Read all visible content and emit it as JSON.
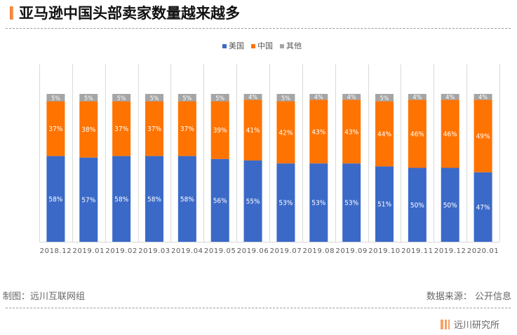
{
  "header": {
    "title": "亚马逊中国头部卖家数量越来越多"
  },
  "footer": {
    "credit": "制图：远川互联网组",
    "source": "数据来源： 公开信息",
    "brand": "远川研究所"
  },
  "chart_data": {
    "type": "bar",
    "stacked": true,
    "title": "亚马逊中国头部卖家数量越来越多",
    "xlabel": "",
    "ylabel": "",
    "ylim": [
      0,
      100
    ],
    "grid": "vertical category separators",
    "legend_position": "top-center",
    "categories": [
      "2018.12",
      "2019.01",
      "2019.02",
      "2019.03",
      "2019.04",
      "2019.05",
      "2019.06",
      "2019.07",
      "2019.08",
      "2019.09",
      "2019.10",
      "2019.11",
      "2019.12",
      "2020.01"
    ],
    "series": [
      {
        "name": "美国",
        "color": "#3b69c7",
        "values": [
          58,
          57,
          58,
          58,
          58,
          56,
          55,
          53,
          53,
          53,
          51,
          50,
          50,
          47
        ]
      },
      {
        "name": "中国",
        "color": "#ff7300",
        "values": [
          37,
          38,
          37,
          37,
          37,
          39,
          41,
          42,
          43,
          43,
          44,
          46,
          46,
          49
        ]
      },
      {
        "name": "其他",
        "color": "#a5a5a5",
        "values": [
          5,
          5,
          5,
          5,
          5,
          5,
          4,
          5,
          4,
          4,
          5,
          4,
          4,
          4
        ]
      }
    ],
    "label_format": "{v}%"
  }
}
